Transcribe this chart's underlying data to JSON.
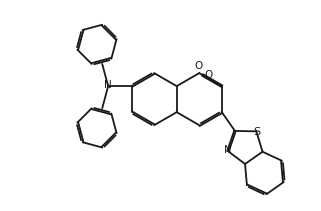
{
  "bg_color": "#ffffff",
  "line_color": "#1a1a1a",
  "line_width": 1.3,
  "figsize": [
    3.21,
    2.11
  ],
  "dpi": 100,
  "xlim": [
    0,
    10
  ],
  "ylim": [
    0,
    6.6
  ]
}
